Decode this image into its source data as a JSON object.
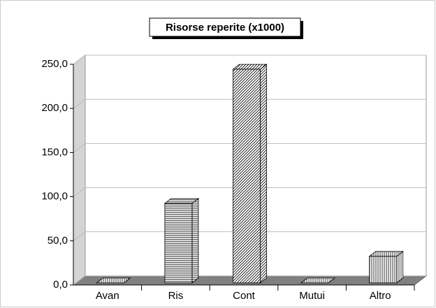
{
  "chart_data": {
    "type": "bar3d",
    "title": "Risorse reperite (x1000)",
    "categories": [
      "Avan",
      "Ris",
      "Cont",
      "Mutui",
      "Altro"
    ],
    "values": [
      0,
      90,
      242,
      0,
      30
    ],
    "ylim": [
      0,
      250
    ],
    "yticks": [
      {
        "value": 0,
        "label": "0,0"
      },
      {
        "value": 50,
        "label": "50,0"
      },
      {
        "value": 100,
        "label": "100,0"
      },
      {
        "value": 150,
        "label": "150,0"
      },
      {
        "value": 200,
        "label": "200,0"
      },
      {
        "value": 250,
        "label": "250,0"
      }
    ],
    "grid": true
  }
}
